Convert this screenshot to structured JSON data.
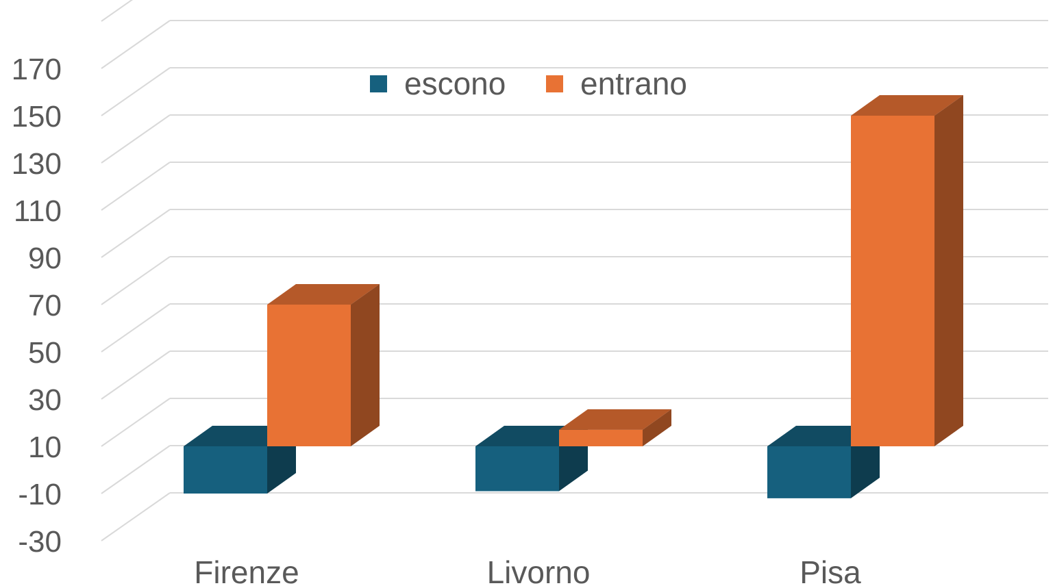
{
  "chart_data": {
    "type": "bar",
    "style": "3d-clustered-column",
    "categories": [
      "Firenze",
      "Livorno",
      "Pisa"
    ],
    "series": [
      {
        "name": "escono",
        "values": [
          -10,
          -9,
          -12
        ],
        "color": "#16607e"
      },
      {
        "name": "entrano",
        "values": [
          70,
          17,
          150
        ],
        "color": "#e87234"
      }
    ],
    "yticks": [
      -30,
      -10,
      10,
      30,
      50,
      70,
      90,
      110,
      130,
      150,
      170
    ],
    "ylim": [
      -30,
      190
    ],
    "grid": true,
    "legend": "top-center"
  }
}
